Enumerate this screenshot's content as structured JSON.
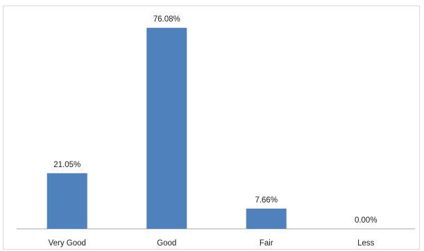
{
  "chart_data": {
    "type": "bar",
    "categories": [
      "Very Good",
      "Good",
      "Fair",
      "Less"
    ],
    "values": [
      21.05,
      76.08,
      7.66,
      0.0
    ],
    "data_labels": [
      "21.05%",
      "76.08%",
      "7.66%",
      "0.00%"
    ],
    "title": "",
    "xlabel": "",
    "ylabel": "",
    "ylim": [
      0,
      80
    ],
    "grid": false,
    "legend": "none",
    "colors": {
      "bar": "#4f81bd",
      "axis": "#a6a6a6",
      "frame": "#d9d9d9"
    }
  }
}
